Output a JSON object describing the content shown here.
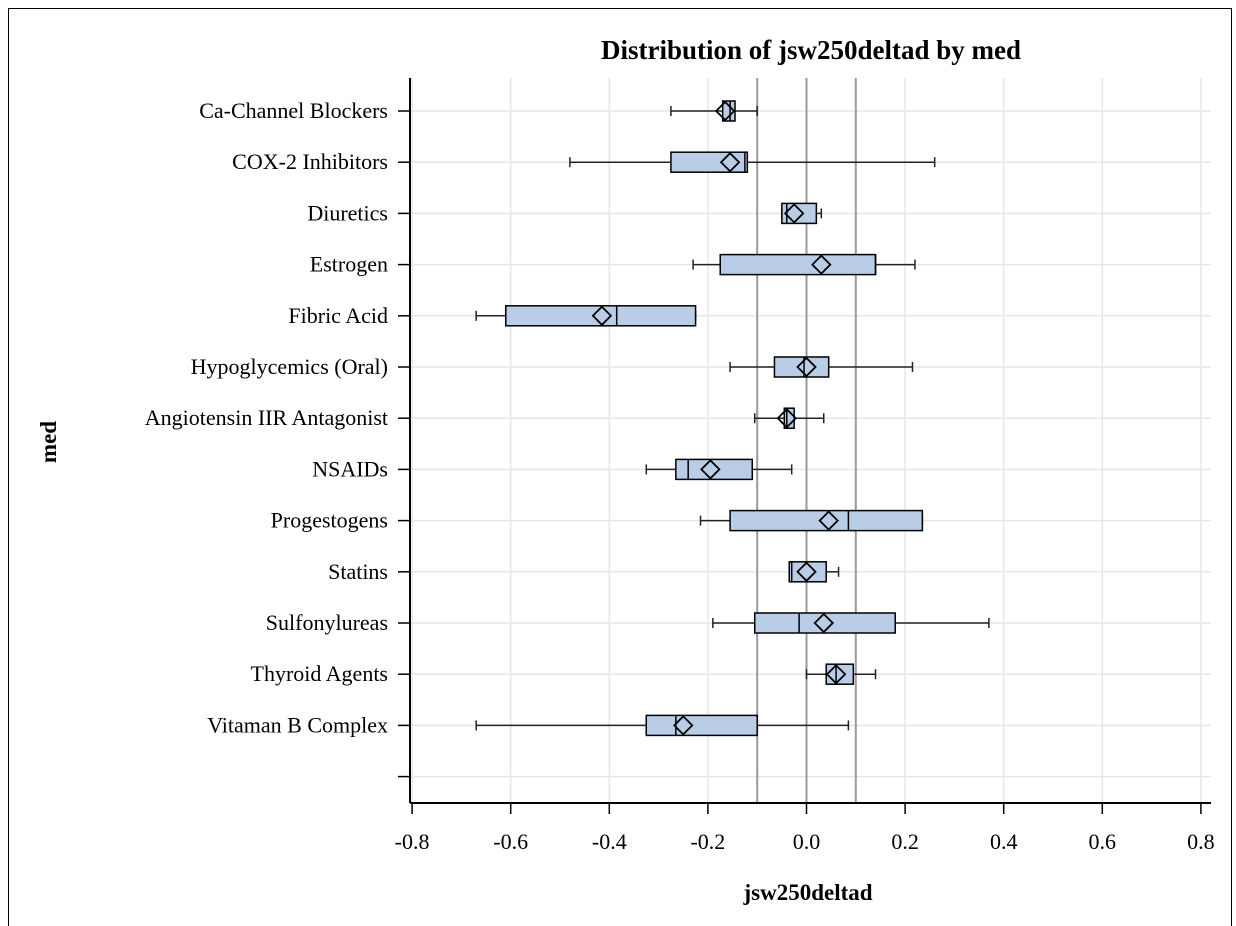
{
  "chart_data": {
    "type": "boxplot",
    "orientation": "horizontal",
    "title": "Distribution of jsw250deltad by med",
    "xlabel": "jsw250deltad",
    "ylabel": "med",
    "xlim": [
      -0.8,
      0.8
    ],
    "xticks": [
      -0.8,
      -0.6,
      -0.4,
      -0.2,
      0.0,
      0.2,
      0.4,
      0.6,
      0.8
    ],
    "xtick_labels": [
      "-0.8",
      "-0.6",
      "-0.4",
      "-0.2",
      "0.0",
      "0.2",
      "0.4",
      "0.6",
      "0.8"
    ],
    "reference_lines": [
      -0.1,
      0.0,
      0.1
    ],
    "grid": true,
    "colors": {
      "box_fill": "#b9cde6",
      "box_stroke": "#000000",
      "grid": "#e6e6e6",
      "refline": "#9a9a9a"
    },
    "categories": [
      "Ca-Channel Blockers",
      "COX-2 Inhibitors",
      "Diuretics",
      "Estrogen",
      "Fibric Acid",
      "Hypoglycemics (Oral)",
      "Angiotensin IIR Antagonist",
      "NSAIDs",
      "Progestogens",
      "Statins",
      "Sulfonylureas",
      "Thyroid Agents",
      "Vitaman B Complex",
      ""
    ],
    "boxes": [
      {
        "category": "Ca-Channel Blockers",
        "min": -0.275,
        "q1": -0.17,
        "median": -0.155,
        "q3": -0.145,
        "max": -0.1,
        "mean": -0.165
      },
      {
        "category": "COX-2 Inhibitors",
        "min": -0.48,
        "q1": -0.275,
        "median": -0.125,
        "q3": -0.12,
        "max": 0.26,
        "mean": -0.155
      },
      {
        "category": "Diuretics",
        "min": -0.05,
        "q1": -0.05,
        "median": -0.04,
        "q3": 0.02,
        "max": 0.03,
        "mean": -0.025
      },
      {
        "category": "Estrogen",
        "min": -0.23,
        "q1": -0.175,
        "median": 0.14,
        "q3": 0.14,
        "max": 0.22,
        "mean": 0.03
      },
      {
        "category": "Fibric Acid",
        "min": -0.67,
        "q1": -0.61,
        "median": -0.385,
        "q3": -0.225,
        "max": -0.225,
        "mean": -0.415
      },
      {
        "category": "Hypoglycemics (Oral)",
        "min": -0.155,
        "q1": -0.065,
        "median": -0.005,
        "q3": 0.045,
        "max": 0.215,
        "mean": 0.0
      },
      {
        "category": "Angiotensin IIR Antagonist",
        "min": -0.105,
        "q1": -0.045,
        "median": -0.04,
        "q3": -0.025,
        "max": 0.035,
        "mean": -0.04
      },
      {
        "category": "NSAIDs",
        "min": -0.325,
        "q1": -0.265,
        "median": -0.24,
        "q3": -0.11,
        "max": -0.03,
        "mean": -0.195
      },
      {
        "category": "Progestogens",
        "min": -0.215,
        "q1": -0.155,
        "median": 0.085,
        "q3": 0.235,
        "max": 0.235,
        "mean": 0.045
      },
      {
        "category": "Statins",
        "min": -0.035,
        "q1": -0.035,
        "median": -0.03,
        "q3": 0.04,
        "max": 0.065,
        "mean": 0.0
      },
      {
        "category": "Sulfonylureas",
        "min": -0.19,
        "q1": -0.105,
        "median": -0.015,
        "q3": 0.18,
        "max": 0.37,
        "mean": 0.035
      },
      {
        "category": "Thyroid Agents",
        "min": 0.0,
        "q1": 0.04,
        "median": 0.06,
        "q3": 0.095,
        "max": 0.14,
        "mean": 0.06
      },
      {
        "category": "Vitaman B Complex",
        "min": -0.67,
        "q1": -0.325,
        "median": -0.265,
        "q3": -0.1,
        "max": 0.085,
        "mean": -0.25
      }
    ]
  }
}
